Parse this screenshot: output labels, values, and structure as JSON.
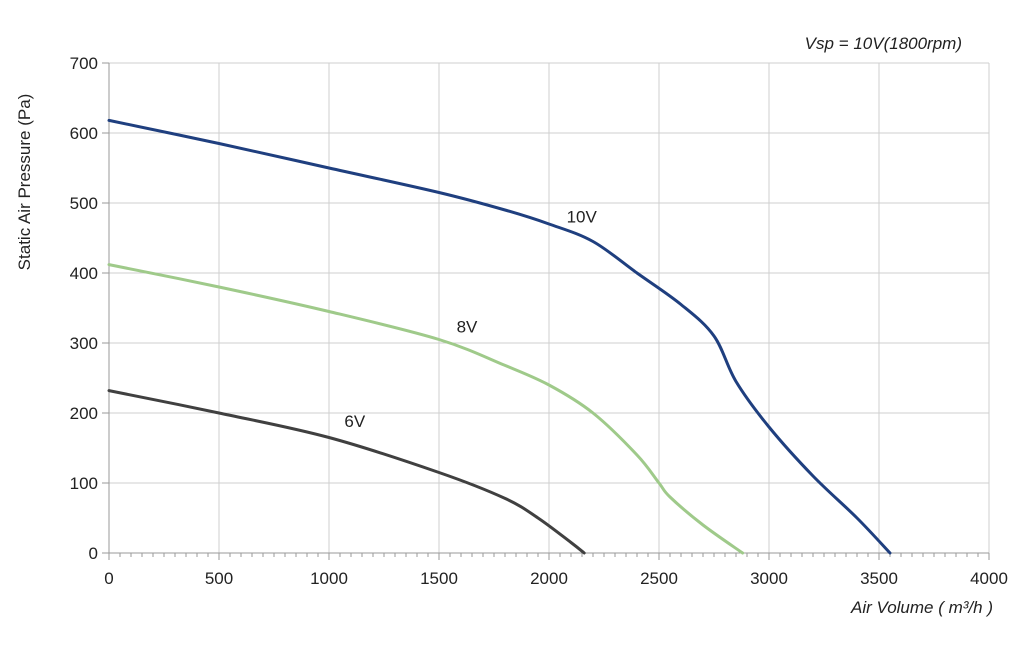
{
  "chart_data": {
    "type": "line",
    "annotation": "Vsp = 10V(1800rpm)",
    "xlabel": "Air Volume ( m³/h )",
    "ylabel": "Static Air Pressure  (Pa)",
    "xlim": [
      0,
      4000
    ],
    "ylim": [
      0,
      700
    ],
    "xticks": [
      0,
      500,
      1000,
      1500,
      2000,
      2500,
      3000,
      3500,
      4000
    ],
    "yticks": [
      0,
      100,
      200,
      300,
      400,
      500,
      600,
      700
    ],
    "xtick_labels": [
      "0",
      "500",
      "1000",
      "1500",
      "2000",
      "2500",
      "3000",
      "3500",
      "4000"
    ],
    "ytick_labels": [
      "0",
      "100",
      "200",
      "300",
      "400",
      "500",
      "600",
      "700"
    ],
    "grid": true,
    "series": [
      {
        "name": "10V",
        "color": "#1f3f7f",
        "label_at": [
          2080,
          472
        ],
        "x": [
          0,
          500,
          1000,
          1500,
          1800,
          2000,
          2200,
          2400,
          2600,
          2750,
          2850,
          3000,
          3200,
          3400,
          3550
        ],
        "y": [
          618,
          585,
          550,
          515,
          490,
          470,
          445,
          400,
          355,
          310,
          245,
          180,
          110,
          50,
          0
        ]
      },
      {
        "name": "8V",
        "color": "#9fca8a",
        "label_at": [
          1580,
          315
        ],
        "x": [
          0,
          500,
          1000,
          1500,
          1800,
          2000,
          2200,
          2400,
          2500,
          2550,
          2700,
          2880
        ],
        "y": [
          412,
          380,
          345,
          305,
          268,
          240,
          200,
          140,
          100,
          80,
          40,
          0
        ]
      },
      {
        "name": "6V",
        "color": "#404040",
        "label_at": [
          1070,
          180
        ],
        "x": [
          0,
          500,
          1000,
          1500,
          1800,
          1950,
          2100,
          2160
        ],
        "y": [
          232,
          200,
          165,
          115,
          78,
          50,
          15,
          0
        ]
      }
    ]
  }
}
